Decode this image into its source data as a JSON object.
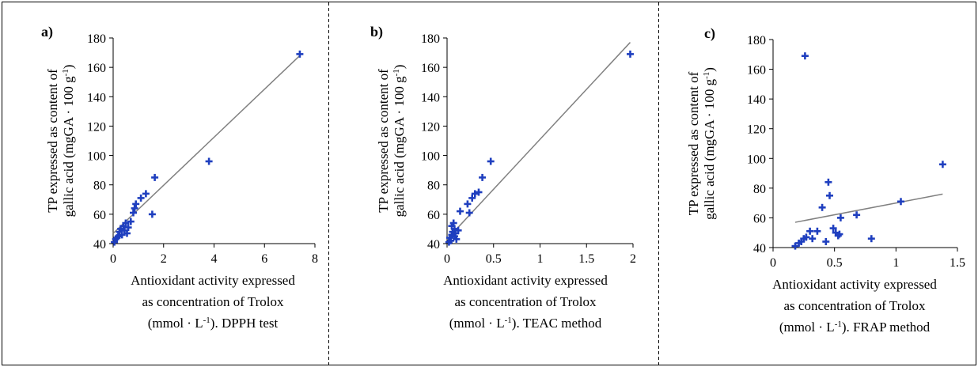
{
  "colors": {
    "marker": "#1f3fbf",
    "fit_line": "#808080",
    "axis": "#000000",
    "frame": "#000000"
  },
  "marker_shape": "plus",
  "chart_data": [
    {
      "type": "scatter",
      "panel_label": "a)",
      "title": "",
      "ylabel_line1": "TP expressed as content of",
      "ylabel_line2_pre": "gallic acid (mgGA · 100 g",
      "ylabel_line2_sup": "-1",
      "ylabel_line2_post": ")",
      "xlabel_lines": [
        "Antioxidant activity expressed",
        "as concentration of Trolox"
      ],
      "xlabel_line3_pre": "(mmol · L",
      "xlabel_line3_sup": "-1",
      "xlabel_line3_post": "). DPPH test",
      "xlim": [
        0,
        8
      ],
      "ylim": [
        40,
        180
      ],
      "xticks": [
        0,
        2,
        4,
        6,
        8
      ],
      "xtick_labels": [
        "0",
        "2",
        "4",
        "6",
        "8"
      ],
      "yticks": [
        40,
        60,
        80,
        100,
        120,
        140,
        160,
        180
      ],
      "ytick_labels": [
        "40",
        "60",
        "80",
        "100",
        "120",
        "140",
        "160",
        "180"
      ],
      "grid": false,
      "points": {
        "x": [
          0.05,
          0.1,
          0.15,
          0.2,
          0.25,
          0.3,
          0.35,
          0.4,
          0.45,
          0.5,
          0.55,
          0.6,
          0.7,
          0.8,
          0.85,
          0.9,
          1.1,
          1.3,
          1.55,
          1.65,
          3.8,
          7.4
        ],
        "y": [
          41,
          43,
          44,
          45,
          48,
          50,
          46,
          52,
          49,
          54,
          47,
          51,
          55,
          61,
          64,
          67,
          71,
          74,
          60,
          85,
          96,
          169
        ]
      },
      "fit_line": {
        "x": [
          0,
          7.4
        ],
        "y": [
          47,
          168
        ]
      }
    },
    {
      "type": "scatter",
      "panel_label": "b)",
      "title": "",
      "ylabel_line1": "TP expressed as content of",
      "ylabel_line2_pre": "gallic acid (mgGA · 100 g",
      "ylabel_line2_sup": "-1",
      "ylabel_line2_post": ")",
      "xlabel_lines": [
        "Antioxidant activity expressed",
        "as concentration of Trolox"
      ],
      "xlabel_line3_pre": "(mmol · L",
      "xlabel_line3_sup": "-1",
      "xlabel_line3_post": "). TEAC method",
      "xlim": [
        0,
        2
      ],
      "ylim": [
        40,
        180
      ],
      "xticks": [
        0,
        0.5,
        1,
        1.5,
        2
      ],
      "xtick_labels": [
        "0",
        "0.5",
        "1",
        "1.5",
        "2"
      ],
      "yticks": [
        40,
        60,
        80,
        100,
        120,
        140,
        160,
        180
      ],
      "ytick_labels": [
        "40",
        "60",
        "80",
        "100",
        "120",
        "140",
        "160",
        "180"
      ],
      "grid": false,
      "points": {
        "x": [
          0.02,
          0.03,
          0.04,
          0.05,
          0.05,
          0.06,
          0.07,
          0.08,
          0.08,
          0.09,
          0.1,
          0.12,
          0.14,
          0.22,
          0.24,
          0.27,
          0.3,
          0.34,
          0.38,
          0.47,
          1.97
        ],
        "y": [
          41,
          44,
          42,
          46,
          52,
          48,
          54,
          45,
          50,
          47,
          43,
          49,
          62,
          67,
          61,
          71,
          74,
          75,
          85,
          96,
          169
        ]
      },
      "fit_line": {
        "x": [
          0,
          1.97
        ],
        "y": [
          43,
          177
        ]
      }
    },
    {
      "type": "scatter",
      "panel_label": "c)",
      "title": "",
      "ylabel_line1": "TP expressed as content of",
      "ylabel_line2_pre": "gallic acid (mgGA · 100 g",
      "ylabel_line2_sup": "-1",
      "ylabel_line2_post": ")",
      "xlabel_lines": [
        "Antioxidant activity expressed",
        "as concentration of Trolox"
      ],
      "xlabel_line3_pre": "(mmol · L",
      "xlabel_line3_sup": "-1",
      "xlabel_line3_post": "). FRAP method",
      "xlim": [
        0,
        1.5
      ],
      "ylim": [
        40,
        180
      ],
      "xticks": [
        0,
        0.5,
        1,
        1.5
      ],
      "xtick_labels": [
        "0",
        "0.5",
        "1",
        "1.5"
      ],
      "yticks": [
        40,
        60,
        80,
        100,
        120,
        140,
        160,
        180
      ],
      "ytick_labels": [
        "40",
        "60",
        "80",
        "100",
        "120",
        "140",
        "160",
        "180"
      ],
      "grid": false,
      "points": {
        "x": [
          0.18,
          0.21,
          0.23,
          0.25,
          0.26,
          0.27,
          0.3,
          0.32,
          0.36,
          0.4,
          0.43,
          0.45,
          0.46,
          0.49,
          0.51,
          0.53,
          0.54,
          0.55,
          0.68,
          0.8,
          1.04,
          1.38
        ],
        "y": [
          41,
          43,
          44,
          46,
          169,
          47,
          51,
          46,
          51,
          67,
          44,
          84,
          75,
          53,
          50,
          48,
          49,
          60,
          62,
          46,
          71,
          96
        ]
      },
      "fit_line": {
        "x": [
          0.18,
          1.38
        ],
        "y": [
          57,
          76
        ]
      }
    }
  ]
}
